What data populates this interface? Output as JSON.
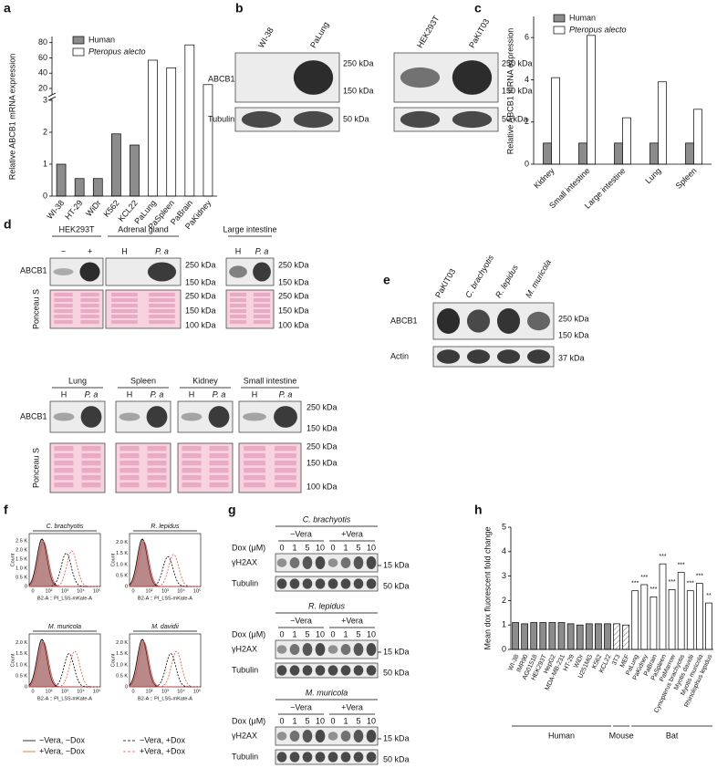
{
  "panel_labels": [
    "a",
    "b",
    "c",
    "d",
    "e",
    "f",
    "g",
    "h"
  ],
  "chart_data": [
    {
      "type": "bar",
      "ylabel": "Relative ABCB1 mRNA expression",
      "categories": [
        "WI-38",
        "HT-29",
        "WiDr",
        "K562",
        "KCL22",
        "PaLung",
        "PaSpleen",
        "PaBrain",
        "PaKidney"
      ],
      "series": [
        {
          "name": "Human",
          "color": "#8c8c8c",
          "values": [
            1,
            0.55,
            0.55,
            1.95,
            1.6,
            null,
            null,
            null,
            null
          ]
        },
        {
          "name": "Pteropus alecto",
          "color": "#ffffff",
          "values": [
            null,
            null,
            null,
            null,
            null,
            57,
            47,
            77,
            25
          ]
        }
      ],
      "ylim": [
        0,
        3
      ],
      "yticks": [
        0,
        1,
        2,
        3
      ],
      "ylim_upper": [
        14,
        88
      ],
      "yticks_upper": [
        20,
        40,
        60,
        80
      ]
    },
    {
      "type": "bar",
      "ylabel": "Relative ABCB1 mRNA expression",
      "categories": [
        "Kidney",
        "Small intestine",
        "Large intestine",
        "Lung",
        "Spleen"
      ],
      "series": [
        {
          "name": "Human",
          "color": "#8c8c8c",
          "values": [
            1,
            1,
            1,
            1,
            1
          ]
        },
        {
          "name": "Pteropus alecto",
          "color": "#ffffff",
          "values": [
            4.1,
            6.1,
            2.2,
            3.9,
            2.6
          ]
        }
      ],
      "ylim": [
        0,
        7
      ],
      "yticks": [
        0,
        2,
        4,
        6
      ]
    },
    {
      "type": "bar",
      "ylabel": "Mean dox fluorescent fold change",
      "categories": [
        "WI-38",
        "IMR90",
        "AG01518",
        "HEK293T",
        "HepG2",
        "MDA-MB-231",
        "HT-29",
        "WiDr",
        "U251MG",
        "K562",
        "KCL22",
        "3T3",
        "MEF",
        "PaLung",
        "PaKidney",
        "PaBrain",
        "PaSpleen",
        "PaMarrow",
        "Cynopterus brachyotis",
        "Myotis davidii",
        "Myotis muricola",
        "Rhinolophus lepidus"
      ],
      "series": [
        {
          "name": "Human",
          "color": "#8c8c8c",
          "values": [
            1.1,
            1.05,
            1.1,
            1.1,
            1.1,
            1.1,
            1.05,
            1.0,
            1.05,
            1.05,
            1.05,
            null,
            null,
            null,
            null,
            null,
            null,
            null,
            null,
            null,
            null,
            null
          ]
        },
        {
          "name": "Mouse",
          "color": "#9a9a9a",
          "hatch": true,
          "values": [
            null,
            null,
            null,
            null,
            null,
            null,
            null,
            null,
            null,
            null,
            null,
            1.05,
            1.0,
            null,
            null,
            null,
            null,
            null,
            null,
            null,
            null,
            null
          ]
        },
        {
          "name": "Bat",
          "color": "#ffffff",
          "values": [
            null,
            null,
            null,
            null,
            null,
            null,
            null,
            null,
            null,
            null,
            null,
            null,
            null,
            2.4,
            2.65,
            2.15,
            3.5,
            2.45,
            3.15,
            2.4,
            2.7,
            1.9
          ]
        }
      ],
      "significance": [
        null,
        null,
        null,
        null,
        null,
        null,
        null,
        null,
        null,
        null,
        null,
        null,
        null,
        "***",
        "***",
        "***",
        "***",
        "***",
        "***",
        "***",
        "***",
        "**"
      ],
      "ylim": [
        0,
        5
      ],
      "yticks": [
        0,
        1,
        2,
        3,
        4,
        5
      ]
    }
  ],
  "blots": {
    "b": {
      "lanes_left": [
        "WI-38",
        "PaLung"
      ],
      "lanes_right": [
        "HEK293T",
        "PaKIT03"
      ],
      "rows": [
        "ABCB1",
        "Tubulin"
      ],
      "markers": [
        "250 kDa",
        "150 kDa",
        "50 kDa"
      ]
    },
    "d": {
      "rows": [
        "ABCB1",
        "Ponceau S"
      ],
      "top": [
        {
          "title": "HEK293T",
          "lanes": [
            "−",
            "+"
          ]
        },
        {
          "title": "Adrenal gland",
          "lanes": [
            "H",
            "P. a"
          ]
        },
        {
          "title": "Large intestine",
          "lanes": [
            "H",
            "P. a"
          ]
        }
      ],
      "bottom": [
        {
          "title": "Lung",
          "lanes": [
            "H",
            "P. a"
          ]
        },
        {
          "title": "Spleen",
          "lanes": [
            "H",
            "P. a"
          ]
        },
        {
          "title": "Kidney",
          "lanes": [
            "H",
            "P. a"
          ]
        },
        {
          "title": "Small intestine",
          "lanes": [
            "H",
            "P. a"
          ]
        }
      ],
      "markers_abcb1": [
        "250 kDa",
        "150 kDa"
      ],
      "markers_ponceau": [
        "250 kDa",
        "150 kDa",
        "100 kDa"
      ]
    },
    "e": {
      "lanes": [
        "PaKIT03",
        "C. brachyotis",
        "R. lepidus",
        "M. muricola"
      ],
      "rows": [
        "ABCB1",
        "Actin"
      ],
      "markers": [
        "250 kDa",
        "150 kDa",
        "37 kDa"
      ]
    },
    "g": {
      "blocks": [
        "C. brachyotis",
        "R. lepidus",
        "M. muricola"
      ],
      "treatments": [
        "−Vera",
        "+Vera"
      ],
      "dose_label": "Dox (μM)",
      "doses": [
        0,
        1,
        5,
        10
      ],
      "rows": [
        "γH2AX",
        "Tubulin"
      ],
      "markers": [
        "15 kDa",
        "50 kDa"
      ]
    }
  },
  "flow": {
    "panels": [
      {
        "title": "C. brachyotis",
        "yticks": [
          "0",
          "0.5 K",
          "1.0 K",
          "1.5 K",
          "2.0 K",
          "2.5 K"
        ]
      },
      {
        "title": "R. lepidus",
        "yticks": [
          "0",
          "0.5 K",
          "1.0 K",
          "1.5 K",
          "2.0 K"
        ]
      },
      {
        "title": "M. muricola",
        "yticks": [
          "0",
          "0.5 K",
          "1.0 K",
          "1.5 K",
          "2.0 K"
        ]
      },
      {
        "title": "M. davidii",
        "yticks": [
          "0",
          "0.5 K",
          "1.0 K",
          "1.5 K",
          "2.0 K"
        ]
      }
    ],
    "xlabel": "B2-A :: PI_LSS-mKate-A",
    "ylabel": "Count",
    "xticks": [
      "0",
      "10²",
      "10³",
      "10⁴",
      "10⁵"
    ],
    "legend": [
      {
        "name": "−Vera, −Dox",
        "color": "#000000",
        "dashed": false
      },
      {
        "name": "+Vera, −Dox",
        "color": "#d9534f",
        "dashed": false
      },
      {
        "name": "−Vera, +Dox",
        "color": "#000000",
        "dashed": true
      },
      {
        "name": "+Vera, +Dox",
        "color": "#d9534f",
        "dashed": true
      }
    ]
  }
}
